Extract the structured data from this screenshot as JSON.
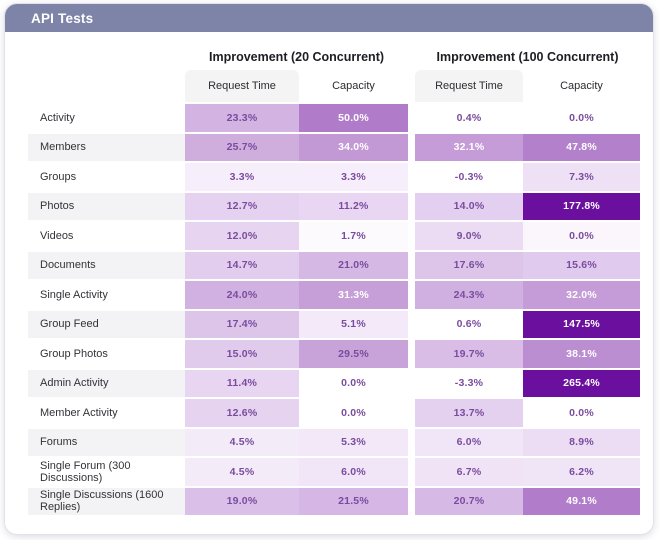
{
  "header": {
    "title": "API Tests",
    "bar_color": "#7e83a8"
  },
  "chart_data": {
    "type": "heatmap",
    "title": "API Tests",
    "column_groups": [
      {
        "label": "Improvement (20 Concurrent)",
        "columns": [
          "Request Time",
          "Capacity"
        ]
      },
      {
        "label": "Improvement (100 Concurrent)",
        "columns": [
          "Request Time",
          "Capacity"
        ]
      }
    ],
    "row_labels": [
      "Activity",
      "Members",
      "Groups",
      "Photos",
      "Videos",
      "Documents",
      "Single Activity",
      "Group Feed",
      "Group Photos",
      "Admin Activity",
      "Member Activity",
      "Forums",
      "Single Forum (300 Discussions)",
      "Single Discussions (1600 Replies)"
    ],
    "values_pct": [
      [
        23.3,
        50.0,
        0.4,
        0.0
      ],
      [
        25.7,
        34.0,
        32.1,
        47.8
      ],
      [
        3.3,
        3.3,
        -0.3,
        7.3
      ],
      [
        12.7,
        11.2,
        14.0,
        177.8
      ],
      [
        12.0,
        1.7,
        9.0,
        0.0
      ],
      [
        14.7,
        21.0,
        17.6,
        15.6
      ],
      [
        24.0,
        31.3,
        24.3,
        32.0
      ],
      [
        17.4,
        5.1,
        0.6,
        147.5
      ],
      [
        15.0,
        29.5,
        19.7,
        38.1
      ],
      [
        11.4,
        0.0,
        -3.3,
        265.4
      ],
      [
        12.6,
        0.0,
        13.7,
        0.0
      ],
      [
        4.5,
        5.3,
        6.0,
        8.9
      ],
      [
        4.5,
        6.0,
        6.7,
        6.2
      ],
      [
        19.0,
        21.5,
        20.7,
        49.1
      ]
    ],
    "color_scale": {
      "low": "#ffffff",
      "mid": "#b07cc9",
      "high": "#6a0f9e"
    },
    "legend_position": "none",
    "grid": false
  },
  "colors": {
    "value_text_dark": "#7a4c9e",
    "value_text_light": "#ffffff",
    "stripe": "#f3f3f5",
    "subheader_bg": "#f4f4f5"
  },
  "table": {
    "groups": [
      "Improvement (20 Concurrent)",
      "Improvement (100 Concurrent)"
    ],
    "subcolumns": [
      "Request Time",
      "Capacity",
      "Request Time",
      "Capacity"
    ],
    "rows": [
      {
        "label": "Activity",
        "striped": false,
        "cells": [
          {
            "v": "23.3%",
            "bg": "#d2b3e2"
          },
          {
            "v": "50.0%",
            "bg": "#b07cc9",
            "lt": true
          },
          {
            "v": "0.4%",
            "bg": "#ffffff"
          },
          {
            "v": "0.0%",
            "bg": "#ffffff"
          }
        ]
      },
      {
        "label": "Members",
        "striped": true,
        "cells": [
          {
            "v": "25.7%",
            "bg": "#cfaede"
          },
          {
            "v": "34.0%",
            "bg": "#c298d5",
            "lt": true
          },
          {
            "v": "32.1%",
            "bg": "#c59cd7",
            "lt": true
          },
          {
            "v": "47.8%",
            "bg": "#b380cb",
            "lt": true
          }
        ]
      },
      {
        "label": "Groups",
        "striped": false,
        "cells": [
          {
            "v": "3.3%",
            "bg": "#f6eefa"
          },
          {
            "v": "3.3%",
            "bg": "#f6eefa"
          },
          {
            "v": "-0.3%",
            "bg": "#ffffff"
          },
          {
            "v": "7.3%",
            "bg": "#eee1f6"
          }
        ]
      },
      {
        "label": "Photos",
        "striped": true,
        "cells": [
          {
            "v": "12.7%",
            "bg": "#e5d2f0"
          },
          {
            "v": "11.2%",
            "bg": "#e8d6f2"
          },
          {
            "v": "14.0%",
            "bg": "#e3cfef"
          },
          {
            "v": "177.8%",
            "bg": "#6a0f9e",
            "lt": true
          }
        ]
      },
      {
        "label": "Videos",
        "striped": false,
        "cells": [
          {
            "v": "12.0%",
            "bg": "#e6d4f1"
          },
          {
            "v": "1.7%",
            "bg": "#fcfafd"
          },
          {
            "v": "9.0%",
            "bg": "#ebdcf4"
          },
          {
            "v": "0.0%",
            "bg": "#faf6fc"
          }
        ]
      },
      {
        "label": "Documents",
        "striped": true,
        "cells": [
          {
            "v": "14.7%",
            "bg": "#e2cdee"
          },
          {
            "v": "21.0%",
            "bg": "#d6b8e5"
          },
          {
            "v": "17.6%",
            "bg": "#ddc5ea"
          },
          {
            "v": "15.6%",
            "bg": "#e0caed"
          }
        ]
      },
      {
        "label": "Single Activity",
        "striped": false,
        "cells": [
          {
            "v": "24.0%",
            "bg": "#d1b1e1"
          },
          {
            "v": "31.3%",
            "bg": "#c69ed8",
            "lt": true
          },
          {
            "v": "24.3%",
            "bg": "#d0b0e1"
          },
          {
            "v": "32.0%",
            "bg": "#c59cd7",
            "lt": true
          }
        ]
      },
      {
        "label": "Group Feed",
        "striped": true,
        "cells": [
          {
            "v": "17.4%",
            "bg": "#ddc5ea"
          },
          {
            "v": "5.1%",
            "bg": "#f3e9f8"
          },
          {
            "v": "0.6%",
            "bg": "#ffffff"
          },
          {
            "v": "147.5%",
            "bg": "#6a0f9e",
            "lt": true
          }
        ]
      },
      {
        "label": "Group Photos",
        "striped": false,
        "cells": [
          {
            "v": "15.0%",
            "bg": "#e1cbed"
          },
          {
            "v": "29.5%",
            "bg": "#c8a3da"
          },
          {
            "v": "19.7%",
            "bg": "#d9bde7"
          },
          {
            "v": "38.1%",
            "bg": "#bb8dd1",
            "lt": true
          }
        ]
      },
      {
        "label": "Admin Activity",
        "striped": true,
        "cells": [
          {
            "v": "11.4%",
            "bg": "#e7d5f1"
          },
          {
            "v": "0.0%",
            "bg": "#ffffff"
          },
          {
            "v": "-3.3%",
            "bg": "#ffffff"
          },
          {
            "v": "265.4%",
            "bg": "#6a0f9e",
            "lt": true
          }
        ]
      },
      {
        "label": "Member Activity",
        "striped": false,
        "cells": [
          {
            "v": "12.6%",
            "bg": "#e5d3f0"
          },
          {
            "v": "0.0%",
            "bg": "#ffffff"
          },
          {
            "v": "13.7%",
            "bg": "#e4d0ef"
          },
          {
            "v": "0.0%",
            "bg": "#ffffff"
          }
        ]
      },
      {
        "label": "Forums",
        "striped": true,
        "cells": [
          {
            "v": "4.5%",
            "bg": "#f4ebf9"
          },
          {
            "v": "5.3%",
            "bg": "#f2e8f8"
          },
          {
            "v": "6.0%",
            "bg": "#f1e6f7"
          },
          {
            "v": "8.9%",
            "bg": "#ecddf4"
          }
        ]
      },
      {
        "label": "Single Forum (300 Discussions)",
        "striped": false,
        "cells": [
          {
            "v": "4.5%",
            "bg": "#f4ebf9"
          },
          {
            "v": "6.0%",
            "bg": "#f1e6f7"
          },
          {
            "v": "6.7%",
            "bg": "#f0e3f6"
          },
          {
            "v": "6.2%",
            "bg": "#f0e4f7"
          }
        ]
      },
      {
        "label": "Single Discussions (1600 Replies)",
        "striped": true,
        "cells": [
          {
            "v": "19.0%",
            "bg": "#dabfe8"
          },
          {
            "v": "21.5%",
            "bg": "#d5b6e4"
          },
          {
            "v": "20.7%",
            "bg": "#d7b9e6"
          },
          {
            "v": "49.1%",
            "bg": "#b17dca",
            "lt": true
          }
        ]
      }
    ]
  }
}
